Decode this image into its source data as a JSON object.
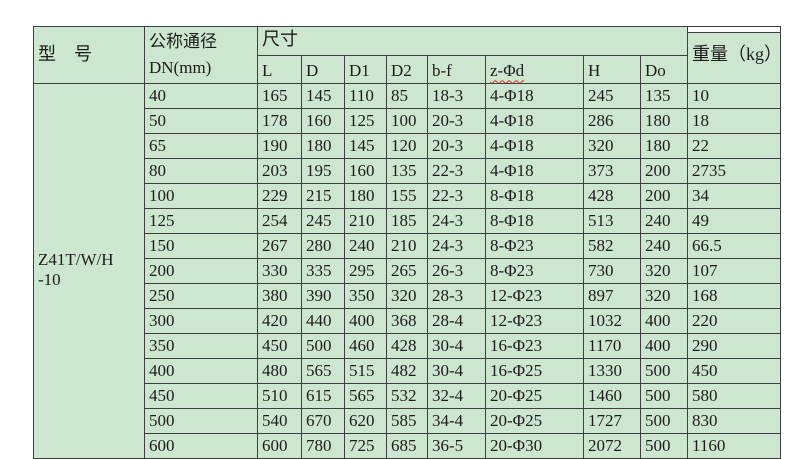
{
  "colors": {
    "cell_bg": "#cde6cf",
    "border": "#3f3f3f",
    "page_bg": "#ffffff",
    "spellcheck_underline": "#e03131"
  },
  "table": {
    "header": {
      "model": "型　号",
      "dn_line1": "公称通径",
      "dn_line2": "DN(mm)",
      "size": "尺寸",
      "size_cols": [
        "L",
        "D",
        "D1",
        "D2",
        "b-f",
        "z-Φd",
        "H",
        "Do"
      ],
      "weight": "重量（kg）"
    },
    "model_line1": "Z41T/W/H",
    "model_line2": "-10",
    "rows": [
      {
        "dn": "40",
        "l": "165",
        "d": "145",
        "d1": "110",
        "d2": "85",
        "bf": "18-3",
        "zd": "4-Φ18",
        "h": "245",
        "doo": "135",
        "w": "10"
      },
      {
        "dn": "50",
        "l": "178",
        "d": "160",
        "d1": "125",
        "d2": "100",
        "bf": "20-3",
        "zd": "4-Φ18",
        "h": "286",
        "doo": "180",
        "w": "18"
      },
      {
        "dn": "65",
        "l": "190",
        "d": "180",
        "d1": "145",
        "d2": "120",
        "bf": "20-3",
        "zd": "4-Φ18",
        "h": "320",
        "doo": "180",
        "w": "22"
      },
      {
        "dn": "80",
        "l": "203",
        "d": "195",
        "d1": "160",
        "d2": "135",
        "bf": "22-3",
        "zd": "4-Φ18",
        "h": "373",
        "doo": "200",
        "w": "2735"
      },
      {
        "dn": "100",
        "l": "229",
        "d": "215",
        "d1": "180",
        "d2": "155",
        "bf": "22-3",
        "zd": "8-Φ18",
        "h": "428",
        "doo": "200",
        "w": "34"
      },
      {
        "dn": "125",
        "l": "254",
        "d": "245",
        "d1": "210",
        "d2": "185",
        "bf": "24-3",
        "zd": "8-Φ18",
        "h": "513",
        "doo": "240",
        "w": "49"
      },
      {
        "dn": "150",
        "l": "267",
        "d": "280",
        "d1": "240",
        "d2": "210",
        "bf": "24-3",
        "zd": "8-Φ23",
        "h": "582",
        "doo": "240",
        "w": "66.5"
      },
      {
        "dn": "200",
        "l": "330",
        "d": "335",
        "d1": "295",
        "d2": "265",
        "bf": "26-3",
        "zd": "8-Φ23",
        "h": "730",
        "doo": "320",
        "w": "107"
      },
      {
        "dn": "250",
        "l": "380",
        "d": "390",
        "d1": "350",
        "d2": "320",
        "bf": "28-3",
        "zd": "12-Φ23",
        "h": "897",
        "doo": "320",
        "w": "168"
      },
      {
        "dn": "300",
        "l": "420",
        "d": "440",
        "d1": "400",
        "d2": "368",
        "bf": "28-4",
        "zd": "12-Φ23",
        "h": "1032",
        "doo": "400",
        "w": "220"
      },
      {
        "dn": "350",
        "l": "450",
        "d": "500",
        "d1": "460",
        "d2": "428",
        "bf": "30-4",
        "zd": "16-Φ23",
        "h": "1170",
        "doo": "400",
        "w": "290"
      },
      {
        "dn": "400",
        "l": "480",
        "d": "565",
        "d1": "515",
        "d2": "482",
        "bf": "30-4",
        "zd": "16-Φ25",
        "h": "1330",
        "doo": "500",
        "w": "450"
      },
      {
        "dn": "450",
        "l": "510",
        "d": "615",
        "d1": "565",
        "d2": "532",
        "bf": "32-4",
        "zd": "20-Φ25",
        "h": "1460",
        "doo": "500",
        "w": "580"
      },
      {
        "dn": "500",
        "l": "540",
        "d": "670",
        "d1": "620",
        "d2": "585",
        "bf": "34-4",
        "zd": "20-Φ25",
        "h": "1727",
        "doo": "500",
        "w": "830"
      },
      {
        "dn": "600",
        "l": "600",
        "d": "780",
        "d1": "725",
        "d2": "685",
        "bf": "36-5",
        "zd": "20-Φ30",
        "h": "2072",
        "doo": "500",
        "w": "1160"
      }
    ]
  }
}
